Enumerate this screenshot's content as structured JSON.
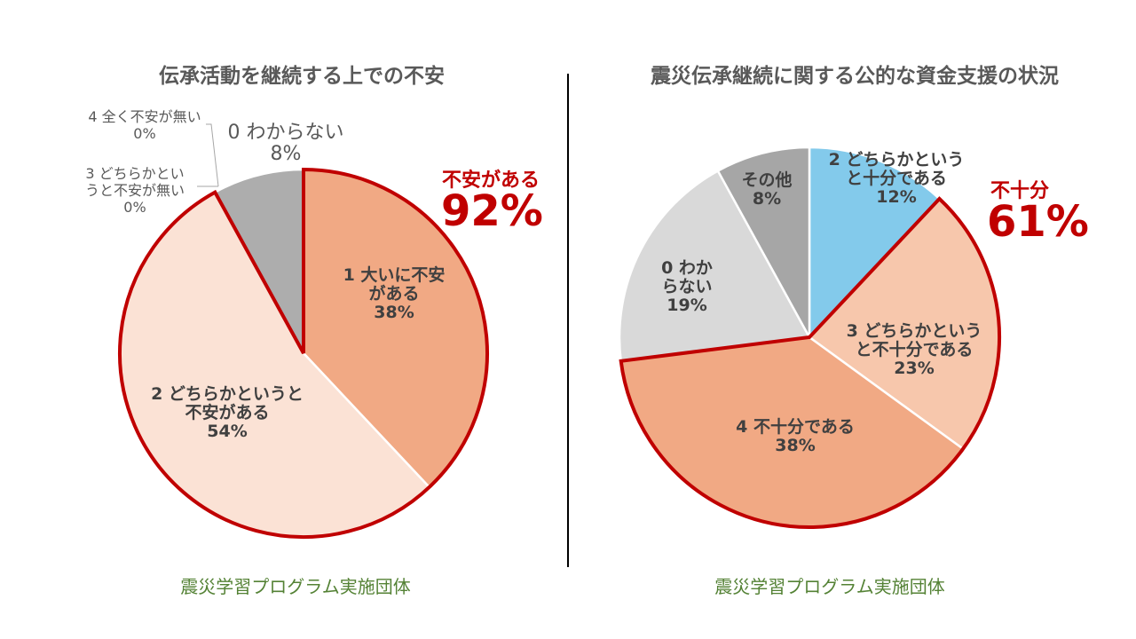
{
  "charts": [
    {
      "title": "伝承活動を継続する上での不安",
      "source": "震災学習プログラム実施団体",
      "callout": {
        "label": "不安がある",
        "value": "92%"
      },
      "slice_labels": [
        [
          "1 大いに不安",
          "がある",
          "38%"
        ],
        [
          "2 どちらかというと",
          "不安がある",
          "54%"
        ],
        [
          "3 どちらかとい",
          "うと不安が無い",
          "0%"
        ],
        [
          "4 全く不安が無い",
          "0%"
        ],
        [
          "0 わからない",
          "8%"
        ]
      ]
    },
    {
      "title": "震災伝承継続に関する公的な資金支援の状況",
      "source": "震災学習プログラム実施団体",
      "callout": {
        "label": "不十分",
        "value": "61%"
      },
      "slice_labels": [
        [
          "2 どちらかという",
          "と十分である",
          "12%"
        ],
        [
          "3 どちらかという",
          "と不十分である",
          "23%"
        ],
        [
          "4 不十分である",
          "38%"
        ],
        [
          "0 わか",
          "らない",
          "19%"
        ],
        [
          "その他",
          "8%"
        ]
      ]
    }
  ],
  "chart_data": [
    {
      "type": "pie",
      "title": "伝承活動を継続する上での不安",
      "start": "top",
      "direction": "clockwise",
      "categories": [
        "1 大いに不安がある",
        "2 どちらかというと不安がある",
        "3 どちらかというと不安が無い",
        "4 全く不安が無い",
        "0 わからない"
      ],
      "values": [
        38,
        54,
        0,
        0,
        8
      ],
      "colors": [
        "#f1a984",
        "#fbe2d5",
        "#f7c7ac",
        "#dddddd",
        "#adadad"
      ],
      "highlight": {
        "categories": [
          0,
          1,
          2,
          3
        ],
        "label": "不安がある",
        "value": 92,
        "color": "#c00000"
      }
    },
    {
      "type": "pie",
      "title": "震災伝承継続に関する公的な資金支援の状況",
      "start": "top",
      "direction": "clockwise",
      "categories": [
        "2 どちらかというと十分である",
        "3 どちらかというと不十分である",
        "4 不十分である",
        "0 わからない",
        "その他"
      ],
      "values": [
        12,
        23,
        38,
        19,
        8
      ],
      "colors": [
        "#83caeb",
        "#f7c7ac",
        "#f1a984",
        "#d9d9d9",
        "#a6a6a6"
      ],
      "highlight": {
        "categories": [
          1,
          2
        ],
        "label": "不十分",
        "value": 61,
        "color": "#c00000"
      }
    }
  ]
}
